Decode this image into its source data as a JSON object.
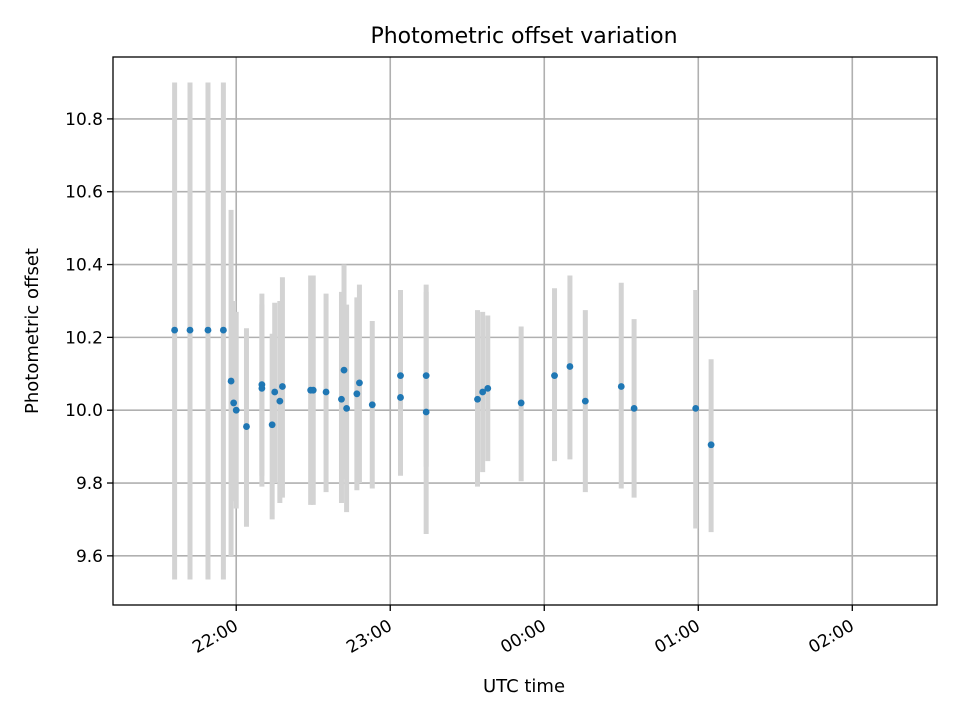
{
  "chart_data": {
    "type": "scatter",
    "title": "Photometric offset variation",
    "xlabel": "UTC time",
    "ylabel": "Photometric offset",
    "x_axis": {
      "kind": "time",
      "min": "21:12",
      "max": "02:33",
      "ticks": [
        "22:00",
        "23:00",
        "00:00",
        "01:00",
        "02:00"
      ]
    },
    "y_axis": {
      "min": 9.465,
      "max": 10.97,
      "ticks": [
        "9.6",
        "9.8",
        "10.0",
        "10.2",
        "10.4",
        "10.6",
        "10.8"
      ]
    },
    "grid": true,
    "marker_color": "#1f77b4",
    "errorbar_color": "#d3d3d3",
    "points": [
      {
        "t": "21:36",
        "y": 10.22,
        "lo": 9.535,
        "hi": 10.9
      },
      {
        "t": "21:42",
        "y": 10.22,
        "lo": 9.535,
        "hi": 10.9
      },
      {
        "t": "21:49",
        "y": 10.22,
        "lo": 9.535,
        "hi": 10.9
      },
      {
        "t": "21:55",
        "y": 10.22,
        "lo": 9.535,
        "hi": 10.9
      },
      {
        "t": "21:58",
        "y": 10.08,
        "lo": 9.6,
        "hi": 10.55
      },
      {
        "t": "21:59",
        "y": 10.02,
        "lo": 9.75,
        "hi": 10.3
      },
      {
        "t": "22:00",
        "y": 10.0,
        "lo": 9.73,
        "hi": 10.27
      },
      {
        "t": "22:04",
        "y": 9.955,
        "lo": 9.68,
        "hi": 10.225
      },
      {
        "t": "22:10",
        "y": 10.07,
        "lo": 9.79,
        "hi": 10.32
      },
      {
        "t": "22:10",
        "y": 10.06,
        "lo": 9.82,
        "hi": 10.29
      },
      {
        "t": "22:14",
        "y": 9.96,
        "lo": 9.7,
        "hi": 10.21
      },
      {
        "t": "22:15",
        "y": 10.05,
        "lo": 9.8,
        "hi": 10.295
      },
      {
        "t": "22:17",
        "y": 10.025,
        "lo": 9.745,
        "hi": 10.3
      },
      {
        "t": "22:18",
        "y": 10.065,
        "lo": 9.76,
        "hi": 10.365
      },
      {
        "t": "22:29",
        "y": 10.055,
        "lo": 9.74,
        "hi": 10.37
      },
      {
        "t": "22:30",
        "y": 10.055,
        "lo": 9.74,
        "hi": 10.37
      },
      {
        "t": "22:35",
        "y": 10.05,
        "lo": 9.775,
        "hi": 10.32
      },
      {
        "t": "22:41",
        "y": 10.03,
        "lo": 9.745,
        "hi": 10.325
      },
      {
        "t": "22:42",
        "y": 10.11,
        "lo": 9.81,
        "hi": 10.4
      },
      {
        "t": "22:43",
        "y": 10.005,
        "lo": 9.72,
        "hi": 10.29
      },
      {
        "t": "22:47",
        "y": 10.045,
        "lo": 9.78,
        "hi": 10.31
      },
      {
        "t": "22:48",
        "y": 10.075,
        "lo": 9.8,
        "hi": 10.345
      },
      {
        "t": "22:53",
        "y": 10.015,
        "lo": 9.785,
        "hi": 10.245
      },
      {
        "t": "23:04",
        "y": 10.035,
        "lo": 9.82,
        "hi": 10.255
      },
      {
        "t": "23:04",
        "y": 10.095,
        "lo": 9.865,
        "hi": 10.33
      },
      {
        "t": "23:14",
        "y": 9.995,
        "lo": 9.66,
        "hi": 10.325
      },
      {
        "t": "23:14",
        "y": 10.095,
        "lo": 9.845,
        "hi": 10.345
      },
      {
        "t": "23:34",
        "y": 10.03,
        "lo": 9.79,
        "hi": 10.275
      },
      {
        "t": "23:36",
        "y": 10.05,
        "lo": 9.83,
        "hi": 10.27
      },
      {
        "t": "23:38",
        "y": 10.06,
        "lo": 9.86,
        "hi": 10.26
      },
      {
        "t": "23:51",
        "y": 10.02,
        "lo": 9.805,
        "hi": 10.23
      },
      {
        "t": "00:04",
        "y": 10.095,
        "lo": 9.86,
        "hi": 10.335
      },
      {
        "t": "00:10",
        "y": 10.12,
        "lo": 9.865,
        "hi": 10.37
      },
      {
        "t": "00:16",
        "y": 10.025,
        "lo": 9.775,
        "hi": 10.275
      },
      {
        "t": "00:30",
        "y": 10.065,
        "lo": 9.785,
        "hi": 10.35
      },
      {
        "t": "00:35",
        "y": 10.005,
        "lo": 9.76,
        "hi": 10.25
      },
      {
        "t": "00:59",
        "y": 10.005,
        "lo": 9.675,
        "hi": 10.33
      },
      {
        "t": "01:05",
        "y": 9.905,
        "lo": 9.665,
        "hi": 10.14
      }
    ]
  }
}
